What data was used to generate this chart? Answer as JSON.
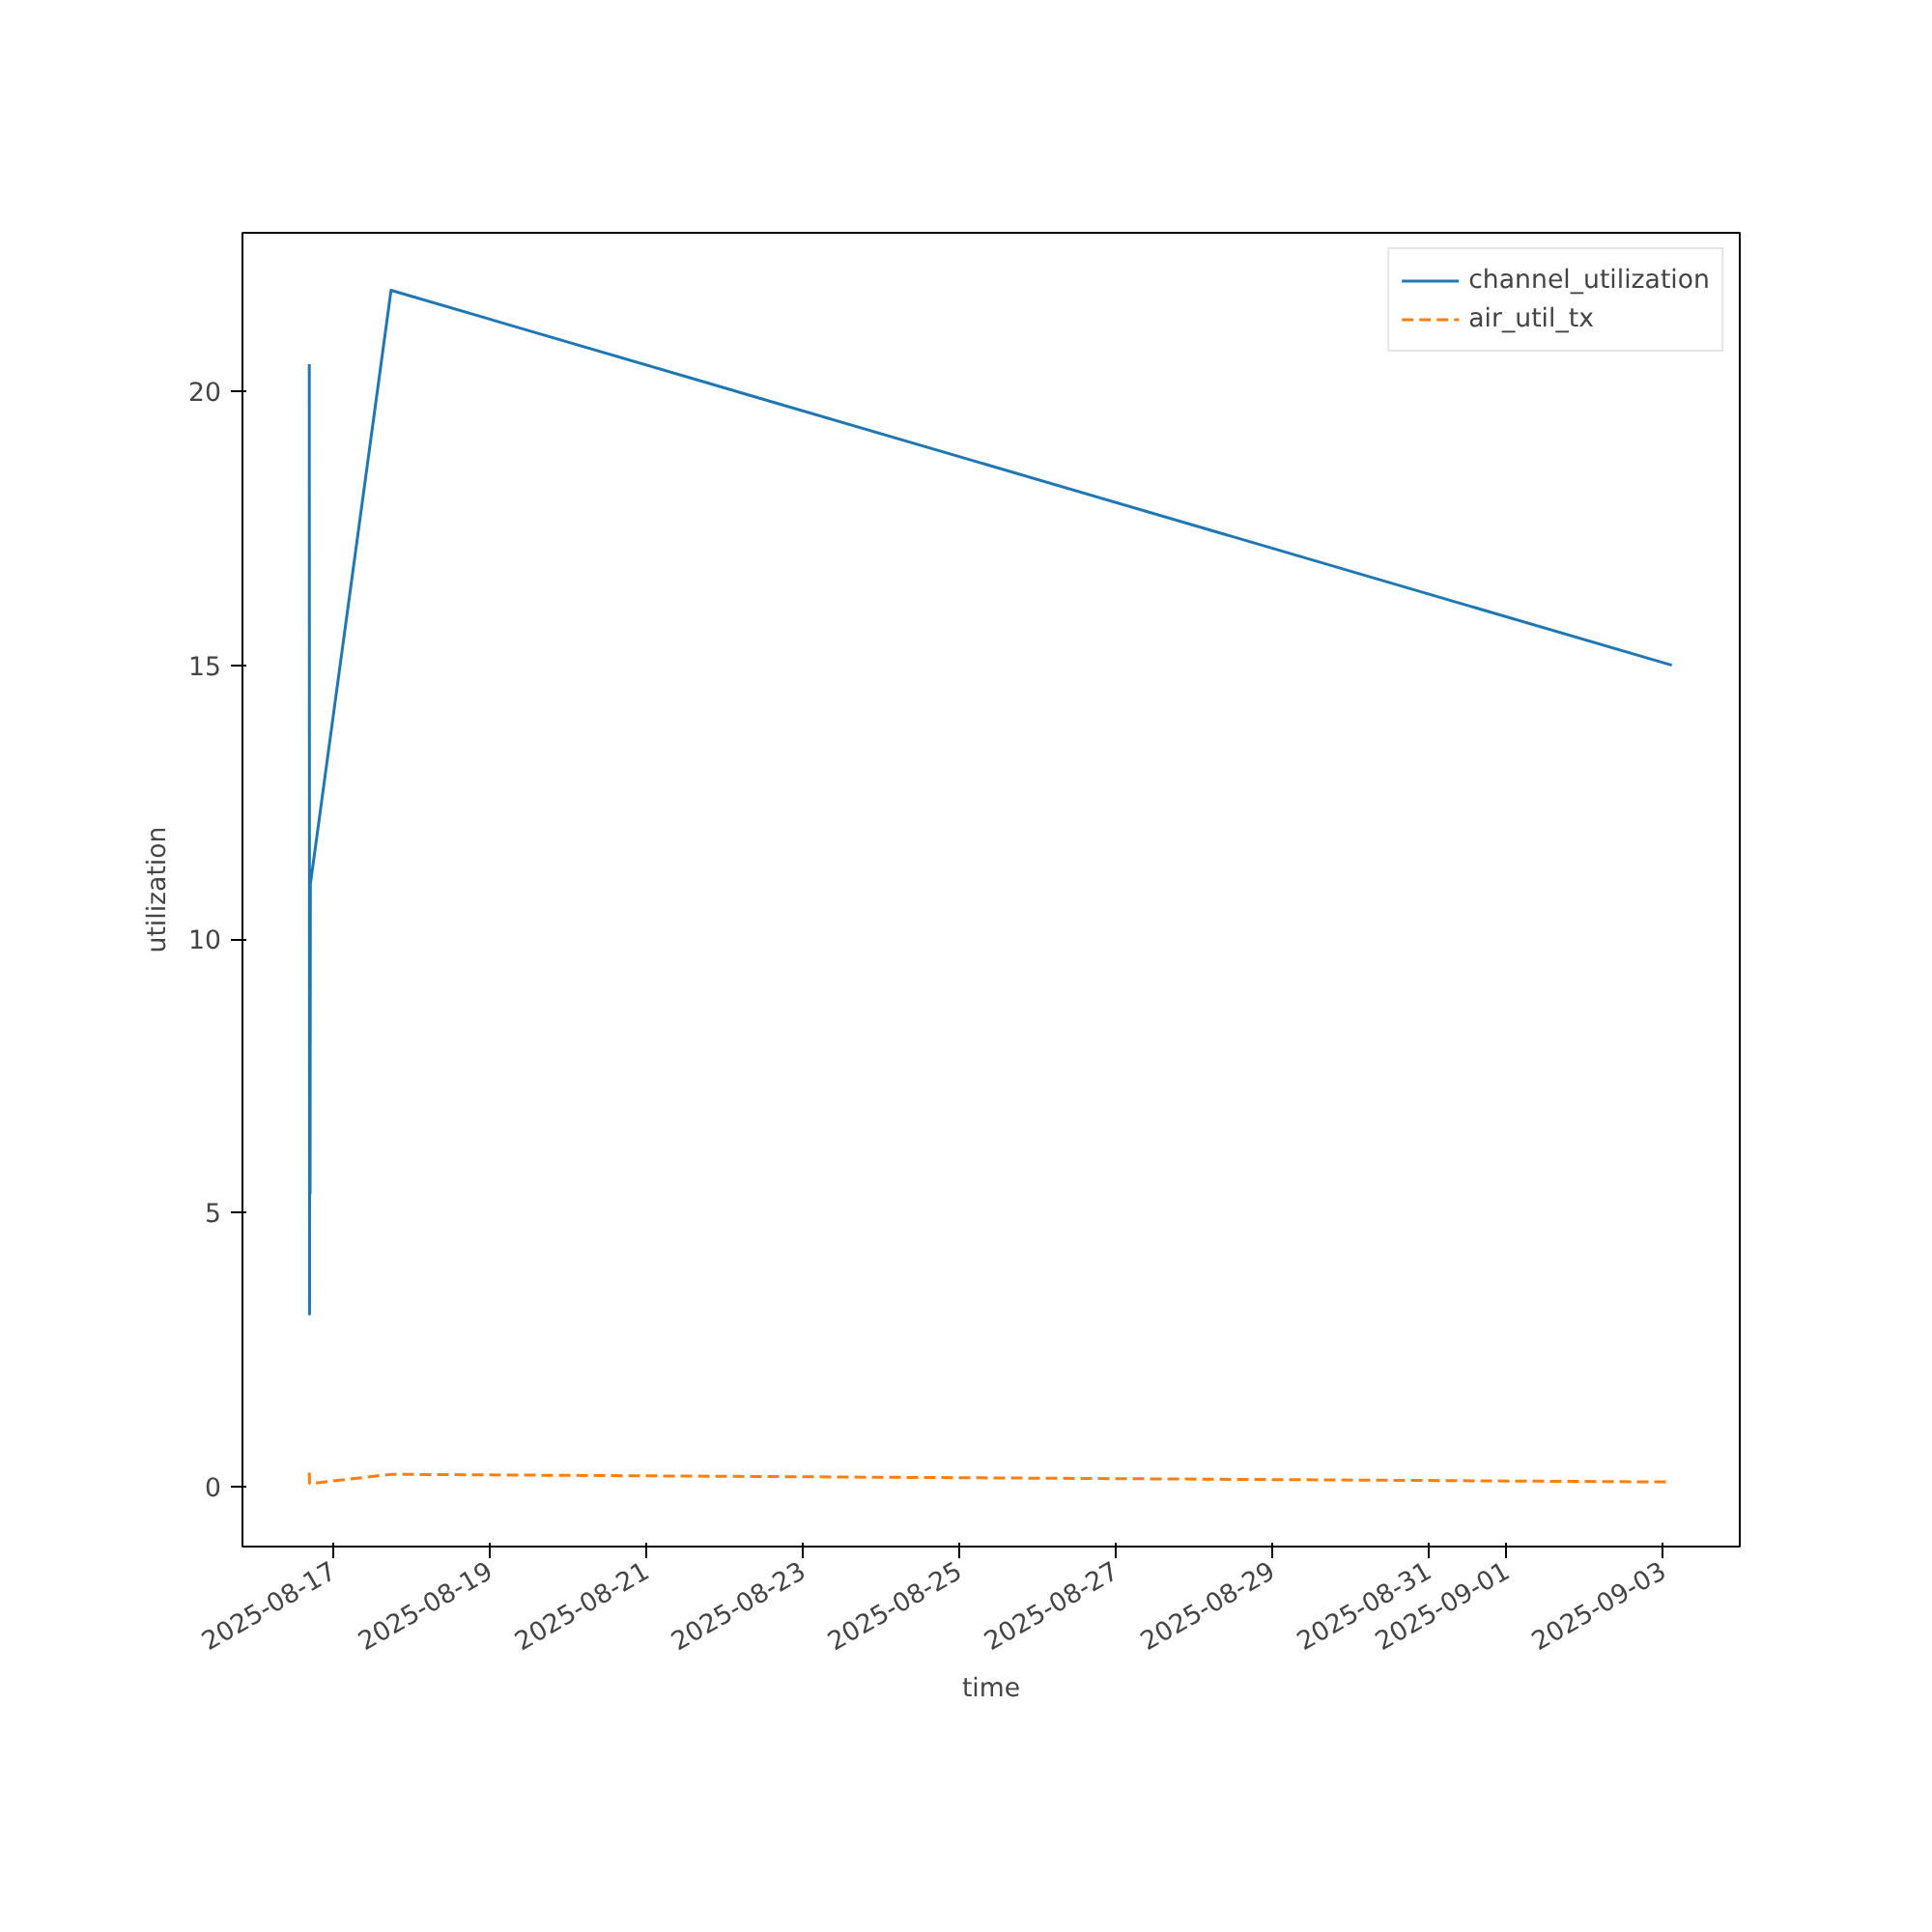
{
  "chart_data": {
    "type": "line",
    "xlabel": "time",
    "ylabel": "utilization",
    "x": [
      "2025-08-16T16:40",
      "2025-08-16T16:45",
      "2025-08-16T16:50",
      "2025-08-16T16:55",
      "2025-08-16T17:00",
      "2025-08-17T17:45",
      "2025-09-03T02:40"
    ],
    "series": [
      {
        "name": "channel_utilization",
        "color": "#1f77b4",
        "line_style": "solid",
        "values": [
          20.5,
          3.15,
          11.0,
          5.35,
          11.0,
          21.85,
          15.0
        ]
      },
      {
        "name": "air_util_tx",
        "color": "#ff7f0e",
        "line_style": "dashed",
        "values": [
          0.25,
          0.05,
          0.05,
          0.05,
          0.05,
          0.22,
          0.08
        ]
      }
    ],
    "xlim": [
      "2025-08-15T20:10",
      "2025-09-03T23:30"
    ],
    "xticks": [
      "2025-08-17",
      "2025-08-19",
      "2025-08-21",
      "2025-08-23",
      "2025-08-25",
      "2025-08-27",
      "2025-08-29",
      "2025-08-31",
      "2025-09-01",
      "2025-09-03"
    ],
    "ylim": [
      -1.1,
      22.9
    ],
    "yticks": [
      0,
      5,
      10,
      15,
      20
    ],
    "grid": false,
    "legend": "top right"
  }
}
